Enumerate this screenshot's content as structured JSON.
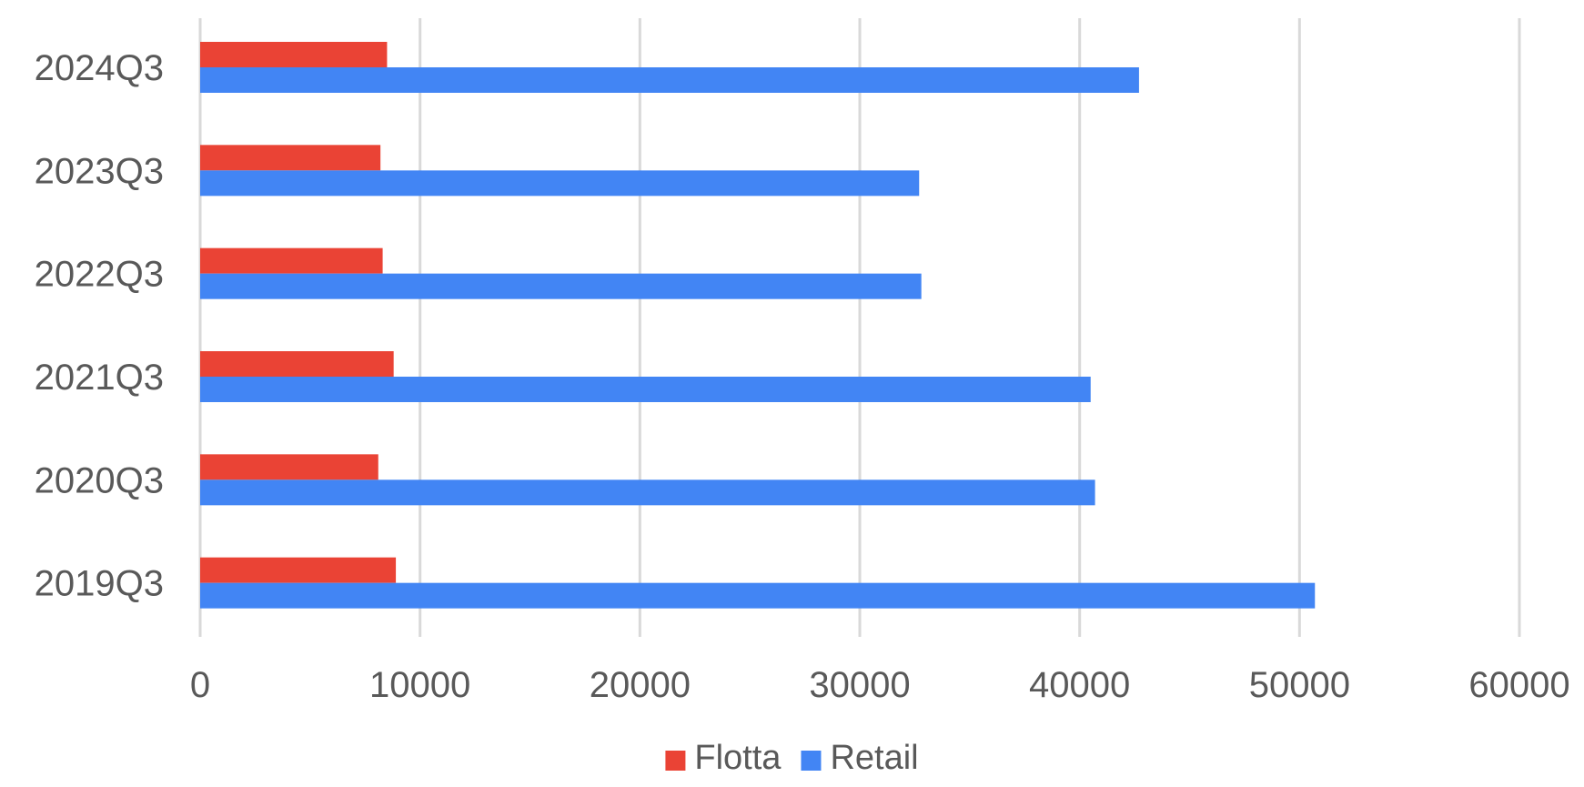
{
  "chart_data": {
    "type": "bar",
    "orientation": "horizontal",
    "categories": [
      "2024Q3",
      "2023Q3",
      "2022Q3",
      "2021Q3",
      "2020Q3",
      "2019Q3"
    ],
    "series": [
      {
        "name": "Flotta",
        "color": "#ea4335",
        "values": [
          8500,
          8200,
          8300,
          8800,
          8100,
          8900
        ]
      },
      {
        "name": "Retail",
        "color": "#4285f4",
        "values": [
          42700,
          32700,
          32800,
          40500,
          40700,
          50700
        ]
      }
    ],
    "xlim": [
      0,
      60000
    ],
    "x_ticks": [
      "0",
      "10000",
      "20000",
      "30000",
      "40000",
      "50000",
      "60000"
    ],
    "x_tick_values": [
      0,
      10000,
      20000,
      30000,
      40000,
      50000,
      60000
    ],
    "title": "",
    "xlabel": "",
    "ylabel": "",
    "grid": "vertical",
    "legend_position": "bottom"
  }
}
